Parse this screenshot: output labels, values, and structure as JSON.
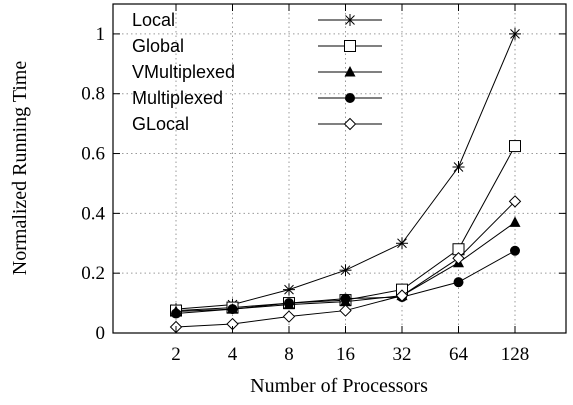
{
  "chart_data": {
    "type": "line",
    "xlabel": "Number of Processors",
    "ylabel": "Normalized Running Time",
    "categories": [
      "2",
      "4",
      "8",
      "16",
      "32",
      "64",
      "128"
    ],
    "ylim": [
      0,
      1.1
    ],
    "yticks": [
      "0",
      "0.2",
      "0.4",
      "0.6",
      "0.8",
      "1"
    ],
    "grid": true,
    "legend_position": "top-left",
    "series": [
      {
        "name": "Local",
        "marker": "asterisk",
        "values": [
          0.08,
          0.095,
          0.145,
          0.21,
          0.3,
          0.555,
          1.0
        ]
      },
      {
        "name": "Global",
        "marker": "open-square",
        "values": [
          0.075,
          0.085,
          0.1,
          0.11,
          0.145,
          0.28,
          0.625
        ]
      },
      {
        "name": "VMultiplexed",
        "marker": "filled-triangle",
        "values": [
          0.072,
          0.08,
          0.095,
          0.105,
          0.125,
          0.235,
          0.37
        ]
      },
      {
        "name": "Multiplexed",
        "marker": "filled-circle",
        "values": [
          0.065,
          0.08,
          0.1,
          0.115,
          0.12,
          0.17,
          0.275
        ]
      },
      {
        "name": "GLocal",
        "marker": "open-diamond",
        "values": [
          0.02,
          0.03,
          0.055,
          0.075,
          0.125,
          0.25,
          0.44
        ]
      }
    ]
  }
}
